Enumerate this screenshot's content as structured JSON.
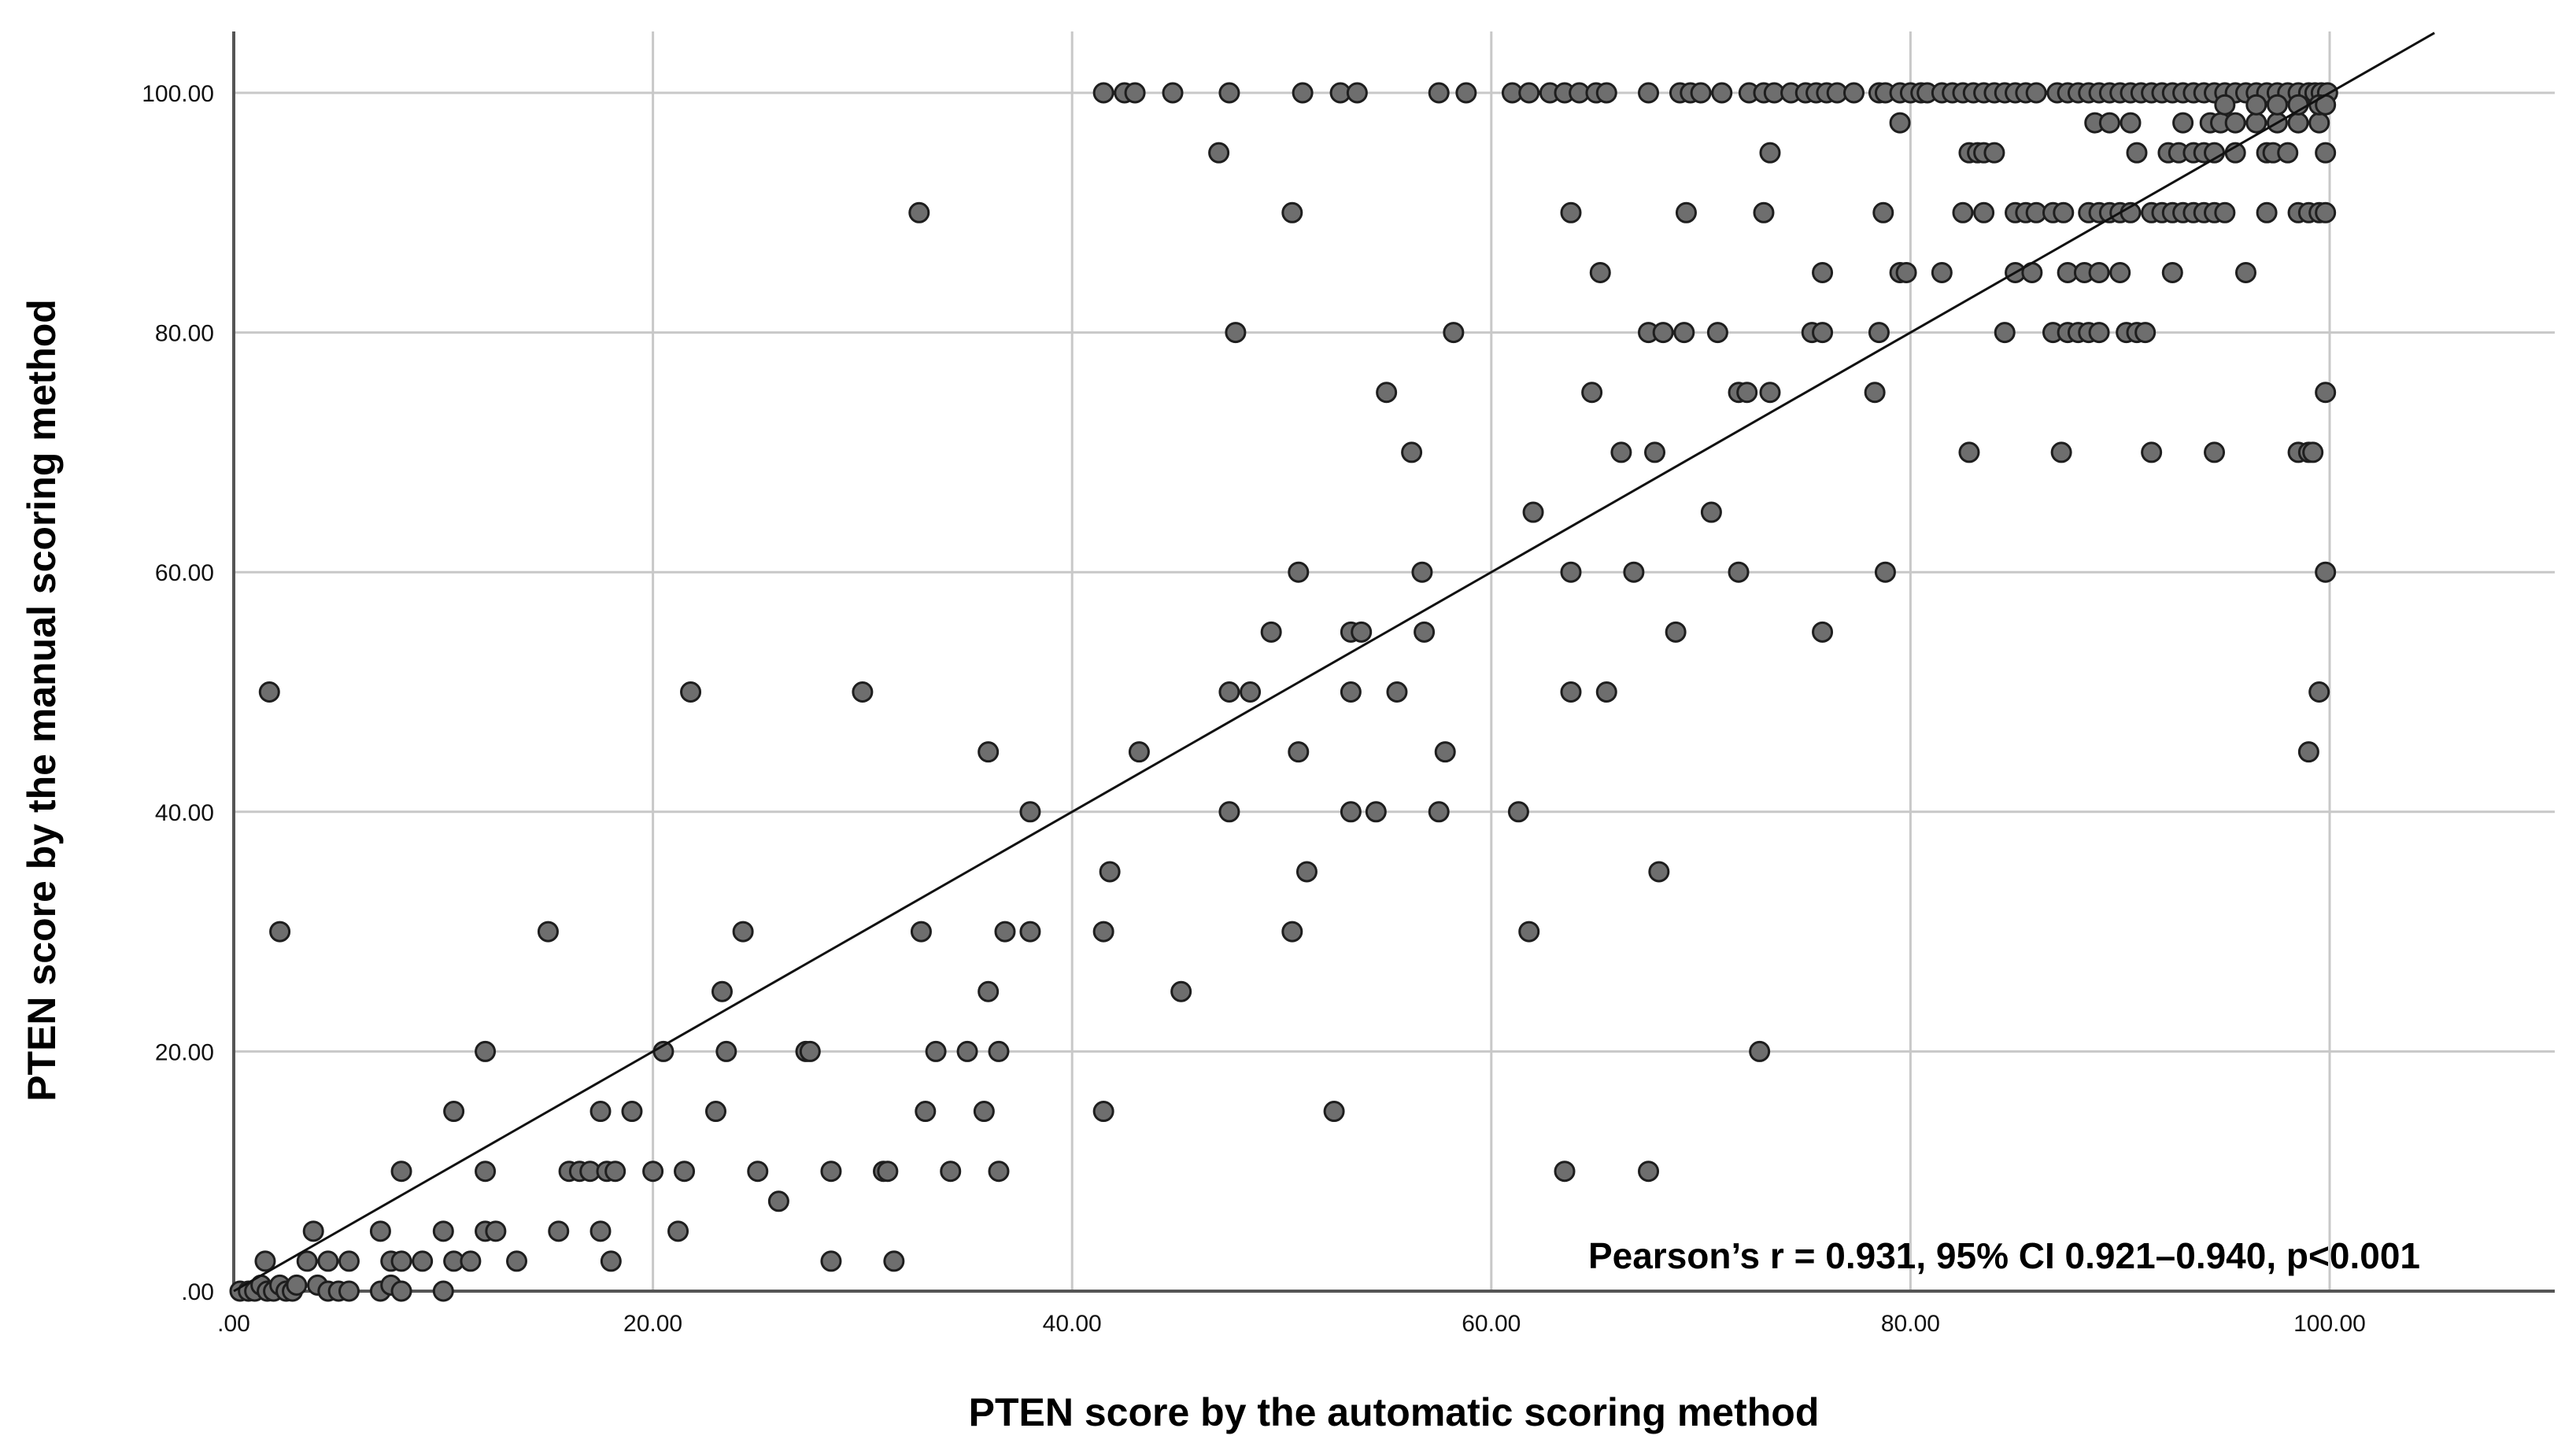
{
  "chart_data": {
    "type": "scatter",
    "title": "",
    "xlabel": "PTEN score by the automatic scoring method",
    "ylabel": "PTEN score by the manual scoring method",
    "xlim": [
      0,
      105
    ],
    "ylim": [
      0,
      105
    ],
    "x_ticks": [
      0,
      20,
      40,
      60,
      80,
      100
    ],
    "y_ticks": [
      0,
      20,
      40,
      60,
      80,
      100
    ],
    "x_tick_labels": [
      ".00",
      "20.00",
      "40.00",
      "60.00",
      "80.00",
      "100.00"
    ],
    "y_tick_labels": [
      ".00",
      "20.00",
      "40.00",
      "60.00",
      "80.00",
      "100.00"
    ],
    "grid": true,
    "fit_line": {
      "x": [
        0,
        105
      ],
      "y": [
        0,
        105
      ]
    },
    "annotation": "Pearson’s r = 0.931, 95% CI 0.921–0.940, p<0.001",
    "colors": {
      "point_fill": "#6e6e6e",
      "point_stroke": "#1e1e1e",
      "grid": "#c8c8c8",
      "axis": "#555555",
      "fit_line": "#111111"
    },
    "points": [
      [
        0.3,
        0
      ],
      [
        0.7,
        0
      ],
      [
        1.0,
        0
      ],
      [
        1.3,
        0.5
      ],
      [
        1.6,
        0
      ],
      [
        1.9,
        0
      ],
      [
        2.2,
        0.5
      ],
      [
        2.5,
        0
      ],
      [
        2.8,
        0
      ],
      [
        3.0,
        0.5
      ],
      [
        4.0,
        0.5
      ],
      [
        4.5,
        0
      ],
      [
        5.0,
        0
      ],
      [
        5.5,
        0
      ],
      [
        7.0,
        0
      ],
      [
        7.5,
        0.5
      ],
      [
        8.0,
        0
      ],
      [
        10.0,
        0
      ],
      [
        1.5,
        2.5
      ],
      [
        3.5,
        2.5
      ],
      [
        4.5,
        2.5
      ],
      [
        5.5,
        2.5
      ],
      [
        7.5,
        2.5
      ],
      [
        8.0,
        2.5
      ],
      [
        9.0,
        2.5
      ],
      [
        10.5,
        2.5
      ],
      [
        11.3,
        2.5
      ],
      [
        13.5,
        2.5
      ],
      [
        18.0,
        2.5
      ],
      [
        28.5,
        2.5
      ],
      [
        31.5,
        2.5
      ],
      [
        3.8,
        5
      ],
      [
        7.0,
        5
      ],
      [
        10.0,
        5
      ],
      [
        12.0,
        5
      ],
      [
        12.5,
        5
      ],
      [
        15.5,
        5
      ],
      [
        17.5,
        5
      ],
      [
        21.2,
        5
      ],
      [
        8.0,
        10
      ],
      [
        12.0,
        10
      ],
      [
        16.0,
        10
      ],
      [
        16.5,
        10
      ],
      [
        17.0,
        10
      ],
      [
        17.8,
        10
      ],
      [
        18.2,
        10
      ],
      [
        20.0,
        10
      ],
      [
        21.5,
        10
      ],
      [
        25.0,
        10
      ],
      [
        28.5,
        10
      ],
      [
        31.0,
        10
      ],
      [
        31.2,
        10
      ],
      [
        34.2,
        10
      ],
      [
        36.5,
        10
      ],
      [
        63.5,
        10
      ],
      [
        67.5,
        10
      ],
      [
        10.5,
        15
      ],
      [
        17.5,
        15
      ],
      [
        19.0,
        15
      ],
      [
        23.0,
        15
      ],
      [
        33.0,
        15
      ],
      [
        35.8,
        15
      ],
      [
        41.5,
        15
      ],
      [
        52.5,
        15
      ],
      [
        12.0,
        20
      ],
      [
        20.5,
        20
      ],
      [
        23.5,
        20
      ],
      [
        27.3,
        20
      ],
      [
        27.5,
        20
      ],
      [
        33.5,
        20
      ],
      [
        35.0,
        20
      ],
      [
        36.5,
        20
      ],
      [
        72.8,
        20
      ],
      [
        26.0,
        7.5
      ],
      [
        23.3,
        25
      ],
      [
        36.0,
        25
      ],
      [
        45.2,
        25
      ],
      [
        2.2,
        30
      ],
      [
        15.0,
        30
      ],
      [
        24.3,
        30
      ],
      [
        32.8,
        30
      ],
      [
        36.8,
        30
      ],
      [
        38.0,
        30
      ],
      [
        41.5,
        30
      ],
      [
        50.5,
        30
      ],
      [
        61.8,
        30
      ],
      [
        41.8,
        35
      ],
      [
        51.2,
        35
      ],
      [
        68.0,
        35
      ],
      [
        38.0,
        40
      ],
      [
        47.5,
        40
      ],
      [
        53.3,
        40
      ],
      [
        54.5,
        40
      ],
      [
        57.5,
        40
      ],
      [
        61.3,
        40
      ],
      [
        36.0,
        45
      ],
      [
        43.2,
        45
      ],
      [
        50.8,
        45
      ],
      [
        57.8,
        45
      ],
      [
        99.0,
        45
      ],
      [
        1.7,
        50
      ],
      [
        21.8,
        50
      ],
      [
        30.0,
        50
      ],
      [
        47.5,
        50
      ],
      [
        48.5,
        50
      ],
      [
        53.3,
        50
      ],
      [
        55.5,
        50
      ],
      [
        63.8,
        50
      ],
      [
        65.5,
        50
      ],
      [
        99.5,
        50
      ],
      [
        49.5,
        55
      ],
      [
        53.3,
        55
      ],
      [
        53.8,
        55
      ],
      [
        56.8,
        55
      ],
      [
        68.8,
        55
      ],
      [
        75.8,
        55
      ],
      [
        50.8,
        60
      ],
      [
        56.7,
        60
      ],
      [
        63.8,
        60
      ],
      [
        66.8,
        60
      ],
      [
        71.8,
        60
      ],
      [
        78.8,
        60
      ],
      [
        99.8,
        60
      ],
      [
        62.0,
        65
      ],
      [
        70.5,
        65
      ],
      [
        56.2,
        70
      ],
      [
        66.2,
        70
      ],
      [
        67.8,
        70
      ],
      [
        82.8,
        70
      ],
      [
        87.2,
        70
      ],
      [
        91.5,
        70
      ],
      [
        94.5,
        70
      ],
      [
        98.5,
        70
      ],
      [
        99.0,
        70
      ],
      [
        99.2,
        70
      ],
      [
        55.0,
        75
      ],
      [
        64.8,
        75
      ],
      [
        73.3,
        75
      ],
      [
        71.8,
        75
      ],
      [
        72.2,
        75
      ],
      [
        78.3,
        75
      ],
      [
        99.8,
        75
      ],
      [
        47.8,
        80
      ],
      [
        58.2,
        80
      ],
      [
        67.5,
        80
      ],
      [
        68.2,
        80
      ],
      [
        69.2,
        80
      ],
      [
        70.8,
        80
      ],
      [
        75.3,
        80
      ],
      [
        75.8,
        80
      ],
      [
        78.5,
        80
      ],
      [
        84.5,
        80
      ],
      [
        86.8,
        80
      ],
      [
        87.5,
        80
      ],
      [
        88.0,
        80
      ],
      [
        88.5,
        80
      ],
      [
        89.0,
        80
      ],
      [
        90.3,
        80
      ],
      [
        90.8,
        80
      ],
      [
        91.2,
        80
      ],
      [
        65.2,
        85
      ],
      [
        75.8,
        85
      ],
      [
        79.5,
        85
      ],
      [
        79.8,
        85
      ],
      [
        81.5,
        85
      ],
      [
        85.0,
        85
      ],
      [
        85.8,
        85
      ],
      [
        87.5,
        85
      ],
      [
        88.3,
        85
      ],
      [
        89.0,
        85
      ],
      [
        90.0,
        85
      ],
      [
        92.5,
        85
      ],
      [
        96.0,
        85
      ],
      [
        32.7,
        90
      ],
      [
        50.5,
        90
      ],
      [
        63.8,
        90
      ],
      [
        69.3,
        90
      ],
      [
        73.0,
        90
      ],
      [
        78.7,
        90
      ],
      [
        82.5,
        90
      ],
      [
        83.5,
        90
      ],
      [
        85.0,
        90
      ],
      [
        85.5,
        90
      ],
      [
        86.0,
        90
      ],
      [
        86.8,
        90
      ],
      [
        87.3,
        90
      ],
      [
        88.5,
        90
      ],
      [
        89.0,
        90
      ],
      [
        89.5,
        90
      ],
      [
        90.0,
        90
      ],
      [
        90.5,
        90
      ],
      [
        91.5,
        90
      ],
      [
        92.0,
        90
      ],
      [
        92.5,
        90
      ],
      [
        93.0,
        90
      ],
      [
        93.5,
        90
      ],
      [
        94.0,
        90
      ],
      [
        94.5,
        90
      ],
      [
        95.0,
        90
      ],
      [
        97.0,
        90
      ],
      [
        98.5,
        90
      ],
      [
        99.0,
        90
      ],
      [
        99.5,
        90
      ],
      [
        99.8,
        90
      ],
      [
        47.0,
        95
      ],
      [
        73.3,
        95
      ],
      [
        82.8,
        95
      ],
      [
        83.2,
        95
      ],
      [
        83.5,
        95
      ],
      [
        84.0,
        95
      ],
      [
        90.8,
        95
      ],
      [
        92.3,
        95
      ],
      [
        92.8,
        95
      ],
      [
        93.5,
        95
      ],
      [
        94.0,
        95
      ],
      [
        94.5,
        95
      ],
      [
        95.5,
        95
      ],
      [
        97.0,
        95
      ],
      [
        97.3,
        95
      ],
      [
        98.0,
        95
      ],
      [
        99.8,
        95
      ],
      [
        79.5,
        97.5
      ],
      [
        88.8,
        97.5
      ],
      [
        89.5,
        97.5
      ],
      [
        90.5,
        97.5
      ],
      [
        93.0,
        97.5
      ],
      [
        94.3,
        97.5
      ],
      [
        94.8,
        97.5
      ],
      [
        95.5,
        97.5
      ],
      [
        96.5,
        97.5
      ],
      [
        97.5,
        97.5
      ],
      [
        98.5,
        97.5
      ],
      [
        99.5,
        97.5
      ],
      [
        41.5,
        100
      ],
      [
        42.5,
        100
      ],
      [
        43.0,
        100
      ],
      [
        44.8,
        100
      ],
      [
        47.5,
        100
      ],
      [
        51.0,
        100
      ],
      [
        52.8,
        100
      ],
      [
        53.6,
        100
      ],
      [
        57.5,
        100
      ],
      [
        58.8,
        100
      ],
      [
        61.0,
        100
      ],
      [
        61.8,
        100
      ],
      [
        62.8,
        100
      ],
      [
        63.5,
        100
      ],
      [
        64.2,
        100
      ],
      [
        65.0,
        100
      ],
      [
        65.5,
        100
      ],
      [
        67.5,
        100
      ],
      [
        69.0,
        100
      ],
      [
        69.5,
        100
      ],
      [
        70.0,
        100
      ],
      [
        71.0,
        100
      ],
      [
        72.3,
        100
      ],
      [
        73.0,
        100
      ],
      [
        73.5,
        100
      ],
      [
        74.3,
        100
      ],
      [
        75.0,
        100
      ],
      [
        75.5,
        100
      ],
      [
        76.0,
        100
      ],
      [
        76.5,
        100
      ],
      [
        77.3,
        100
      ],
      [
        78.5,
        100
      ],
      [
        78.8,
        100
      ],
      [
        79.5,
        100
      ],
      [
        80.0,
        100
      ],
      [
        80.5,
        100
      ],
      [
        80.8,
        100
      ],
      [
        81.5,
        100
      ],
      [
        82.0,
        100
      ],
      [
        82.5,
        100
      ],
      [
        83.0,
        100
      ],
      [
        83.5,
        100
      ],
      [
        84.0,
        100
      ],
      [
        84.5,
        100
      ],
      [
        85.0,
        100
      ],
      [
        85.5,
        100
      ],
      [
        86.0,
        100
      ],
      [
        87.0,
        100
      ],
      [
        87.5,
        100
      ],
      [
        88.0,
        100
      ],
      [
        88.5,
        100
      ],
      [
        89.0,
        100
      ],
      [
        89.5,
        100
      ],
      [
        90.0,
        100
      ],
      [
        90.5,
        100
      ],
      [
        91.0,
        100
      ],
      [
        91.5,
        100
      ],
      [
        92.0,
        100
      ],
      [
        92.5,
        100
      ],
      [
        93.0,
        100
      ],
      [
        93.5,
        100
      ],
      [
        94.0,
        100
      ],
      [
        94.5,
        100
      ],
      [
        95.0,
        100
      ],
      [
        95.5,
        100
      ],
      [
        96.0,
        100
      ],
      [
        96.5,
        100
      ],
      [
        97.0,
        100
      ],
      [
        97.5,
        100
      ],
      [
        98.0,
        100
      ],
      [
        98.5,
        100
      ],
      [
        99.0,
        100
      ],
      [
        99.3,
        100
      ],
      [
        99.6,
        100
      ],
      [
        99.9,
        100
      ],
      [
        95.0,
        99
      ],
      [
        96.5,
        99
      ],
      [
        97.5,
        99
      ],
      [
        98.5,
        99
      ],
      [
        99.5,
        99
      ],
      [
        99.8,
        99
      ]
    ]
  }
}
